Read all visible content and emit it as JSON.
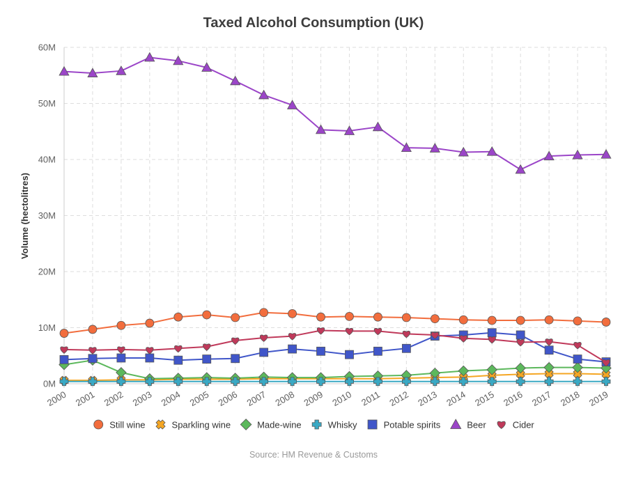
{
  "chart_data": {
    "type": "line",
    "title": "Taxed Alcohol Consumption (UK)",
    "xlabel": "",
    "ylabel": "Volume (hectolitres)",
    "ylim": [
      0,
      60000000
    ],
    "yticks": [
      {
        "value": 0,
        "label": "0M"
      },
      {
        "value": 10000000,
        "label": "10M"
      },
      {
        "value": 20000000,
        "label": "20M"
      },
      {
        "value": 30000000,
        "label": "30M"
      },
      {
        "value": 40000000,
        "label": "40M"
      },
      {
        "value": 50000000,
        "label": "50M"
      },
      {
        "value": 60000000,
        "label": "60M"
      }
    ],
    "categories": [
      "2000",
      "2001",
      "2002",
      "2003",
      "2004",
      "2005",
      "2006",
      "2007",
      "2008",
      "2009",
      "2010",
      "2011",
      "2012",
      "2013",
      "2014",
      "2015",
      "2016",
      "2017",
      "2018",
      "2019"
    ],
    "grid": true,
    "legend_position": "bottom",
    "source": "Source: HM Revenue & Customs",
    "series": [
      {
        "name": "Still wine",
        "color": "#f26d3d",
        "marker": "circle",
        "values": [
          9000000,
          9700000,
          10400000,
          10800000,
          11900000,
          12300000,
          11800000,
          12700000,
          12500000,
          11900000,
          12000000,
          11900000,
          11800000,
          11600000,
          11400000,
          11300000,
          11300000,
          11400000,
          11200000,
          11000000
        ]
      },
      {
        "name": "Sparkling wine",
        "color": "#f5a623",
        "marker": "x",
        "values": [
          600000,
          600000,
          700000,
          700000,
          800000,
          800000,
          800000,
          900000,
          900000,
          900000,
          900000,
          900000,
          1000000,
          1100000,
          1200000,
          1500000,
          1700000,
          1800000,
          1800000,
          1700000
        ]
      },
      {
        "name": "Made-wine",
        "color": "#5cb85c",
        "marker": "diamond",
        "values": [
          3400000,
          4200000,
          2000000,
          900000,
          1000000,
          1100000,
          1000000,
          1200000,
          1100000,
          1100000,
          1300000,
          1400000,
          1500000,
          1900000,
          2300000,
          2500000,
          2800000,
          2900000,
          2900000,
          2800000
        ]
      },
      {
        "name": "Whisky",
        "color": "#3aa9c4",
        "marker": "cross",
        "values": [
          400000,
          400000,
          400000,
          400000,
          400000,
          400000,
          400000,
          400000,
          400000,
          400000,
          400000,
          400000,
          400000,
          400000,
          400000,
          400000,
          400000,
          400000,
          400000,
          400000
        ]
      },
      {
        "name": "Potable spirits",
        "color": "#4056c9",
        "marker": "square",
        "values": [
          4300000,
          4500000,
          4600000,
          4600000,
          4200000,
          4400000,
          4500000,
          5600000,
          6200000,
          5800000,
          5200000,
          5800000,
          6300000,
          8500000,
          8700000,
          9100000,
          8700000,
          6000000,
          4400000,
          3900000
        ]
      },
      {
        "name": "Beer",
        "color": "#9b45c8",
        "marker": "triangle",
        "values": [
          55700000,
          55400000,
          55800000,
          58200000,
          57600000,
          56400000,
          54000000,
          51500000,
          49700000,
          45300000,
          45100000,
          45800000,
          42100000,
          42000000,
          41300000,
          41400000,
          38200000,
          40600000,
          40800000,
          40900000
        ]
      },
      {
        "name": "Cider",
        "color": "#c0395a",
        "marker": "heart",
        "values": [
          6100000,
          6000000,
          6100000,
          6000000,
          6300000,
          6600000,
          7700000,
          8200000,
          8500000,
          9500000,
          9400000,
          9400000,
          8900000,
          8700000,
          8100000,
          7900000,
          7400000,
          7500000,
          6900000,
          3800000
        ]
      }
    ]
  }
}
